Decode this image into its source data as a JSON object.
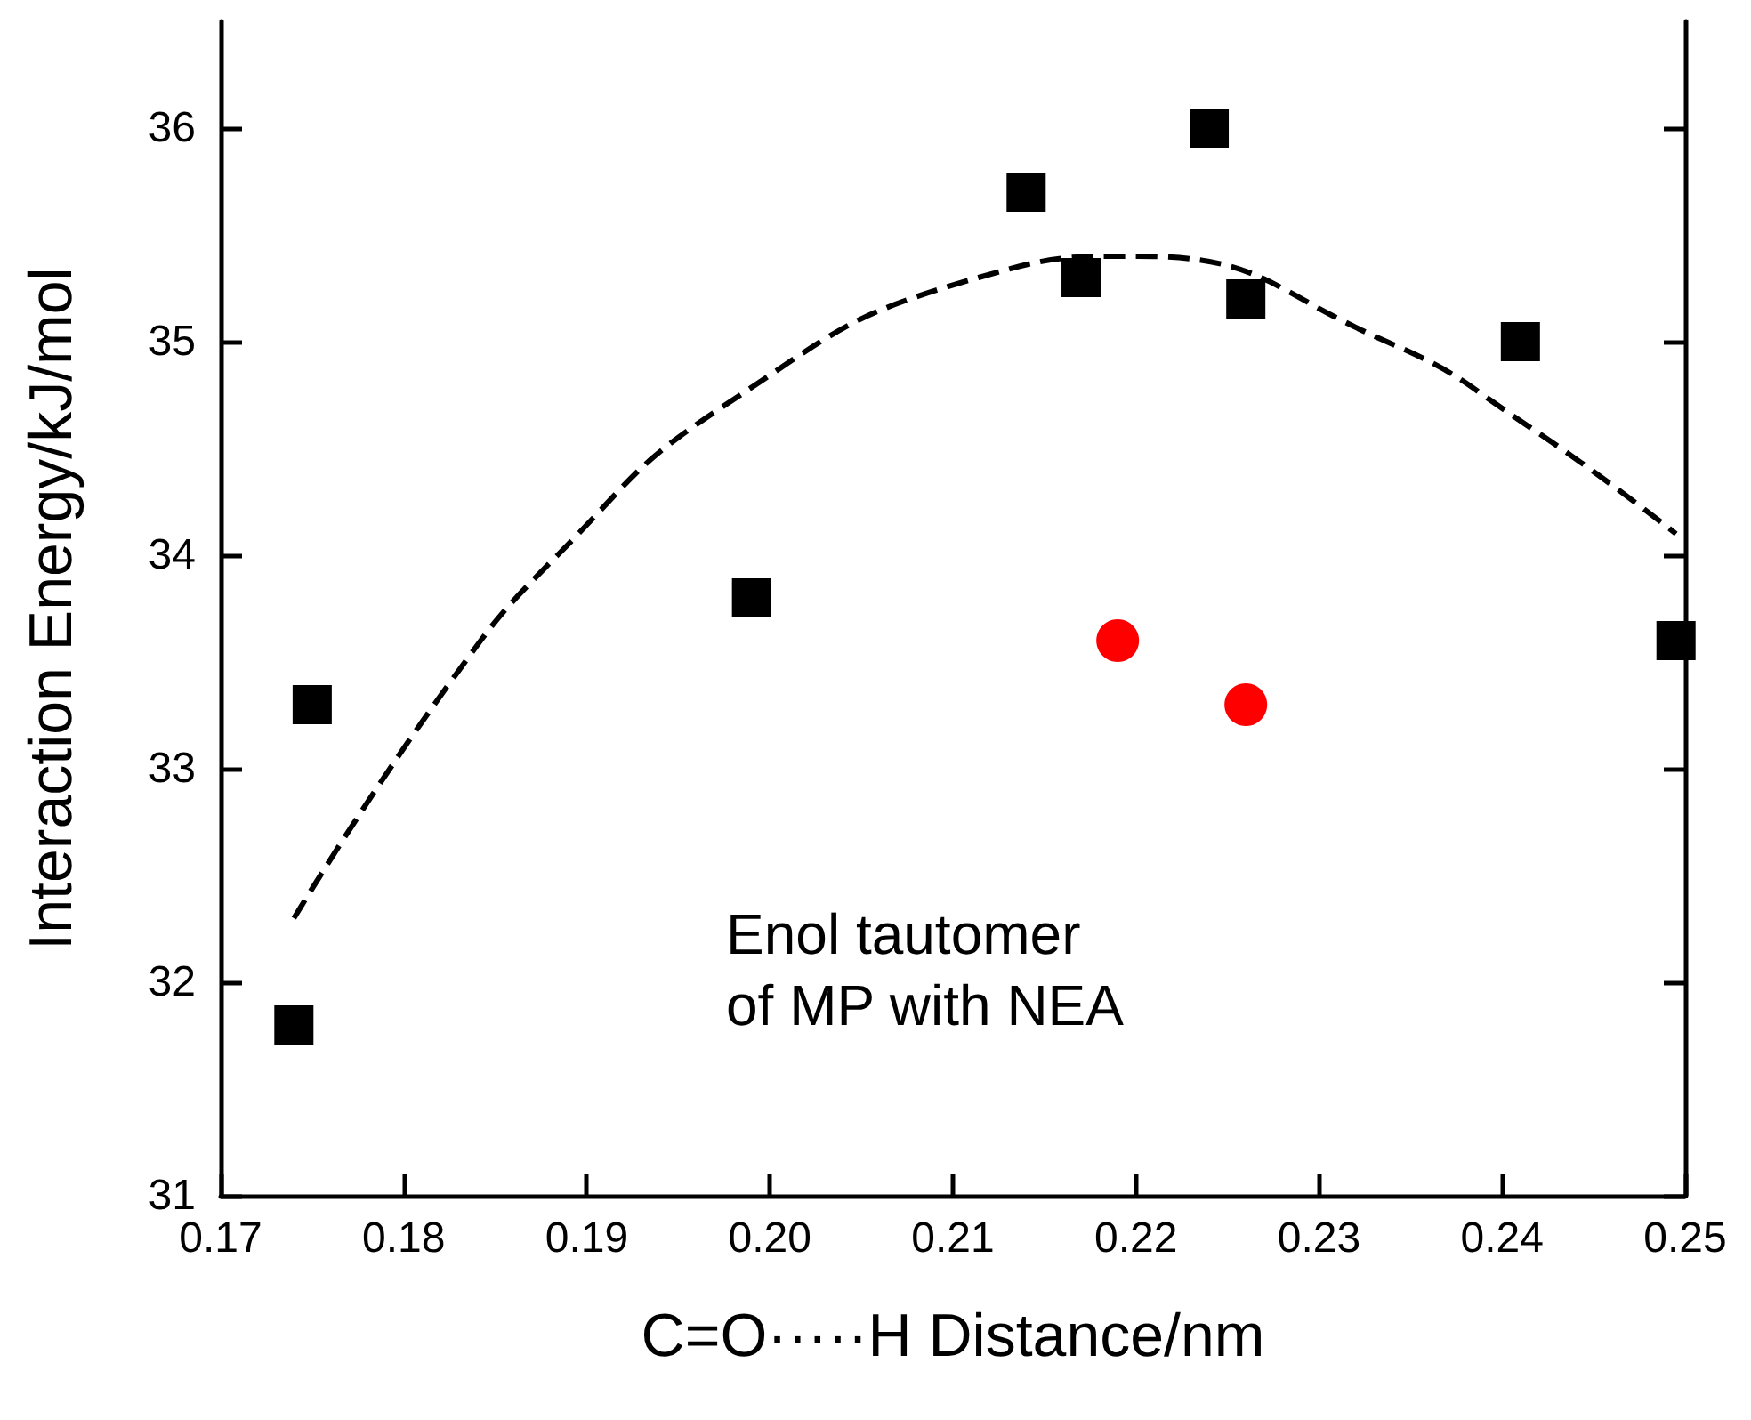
{
  "chart_data": {
    "type": "scatter",
    "xlabel": "C=O·····H Distance/nm",
    "ylabel": "Interaction Energy/kJ/mol",
    "annotations": [
      "Enol tautomer\nof MP with NEA"
    ],
    "xlim": [
      0.17,
      0.25
    ],
    "xticks": [
      {
        "value": 0.17,
        "label": "0.17"
      },
      {
        "value": 0.18,
        "label": "0.18"
      },
      {
        "value": 0.19,
        "label": "0.19"
      },
      {
        "value": 0.2,
        "label": "0.20"
      },
      {
        "value": 0.21,
        "label": "0.21"
      },
      {
        "value": 0.22,
        "label": "0.22"
      },
      {
        "value": 0.23,
        "label": "0.23"
      },
      {
        "value": 0.24,
        "label": "0.24"
      },
      {
        "value": 0.25,
        "label": "0.25"
      }
    ],
    "ylim": [
      31,
      36.5
    ],
    "yticks": [
      31,
      32,
      33,
      34,
      35,
      36
    ],
    "grid": false,
    "series": [
      {
        "marker": "square",
        "color": "#000000",
        "x": [
          0.174,
          0.175,
          0.199,
          0.214,
          0.217,
          0.224,
          0.226,
          0.241,
          0.2495
        ],
        "values": [
          31.8,
          33.3,
          33.8,
          35.7,
          35.3,
          36.0,
          35.2,
          35.0,
          33.6
        ]
      },
      {
        "marker": "circle",
        "color": "#ff0000",
        "x": [
          0.219,
          0.226
        ],
        "values": [
          33.6,
          33.3
        ]
      },
      {
        "type": "line",
        "marker": "none",
        "line_style": "dashed",
        "color": "#000000",
        "x": [
          0.174,
          0.1825,
          0.1884,
          0.1975,
          0.2114,
          0.2201,
          0.2337,
          0.2415,
          0.2495
        ],
        "values": [
          32.3,
          33.4,
          34.0,
          34.7,
          35.3,
          35.4,
          35.0,
          34.6,
          34.1
        ]
      }
    ]
  }
}
